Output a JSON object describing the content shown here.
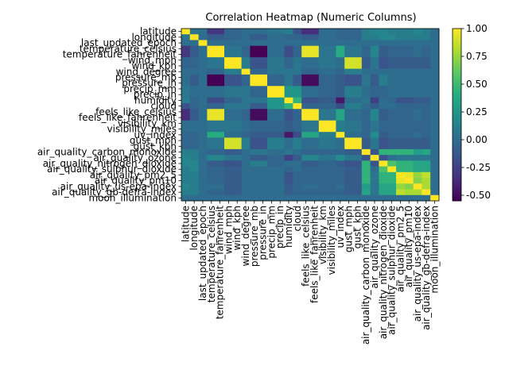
{
  "chart_data": {
    "type": "heatmap",
    "title": "Correlation Heatmap (Numeric Columns)",
    "xlabel": "",
    "ylabel": "",
    "labels": [
      "latitude",
      "longitude",
      "last_updated_epoch",
      "temperature_celsius",
      "temperature_fahrenheit",
      "wind_mph",
      "wind_kph",
      "wind_degree",
      "pressure_mb",
      "pressure_in",
      "precip_mm",
      "precip_in",
      "humidity",
      "cloud",
      "feels_like_celsius",
      "feels_like_fahrenheit",
      "visibility_km",
      "visibility_miles",
      "uv_index",
      "gust_mph",
      "gust_kph",
      "air_quality_carbon_monoxide",
      "air_quality_ozone",
      "air_quality_nitrogen_dioxide",
      "air_quality_sulphur_dioxide",
      "air_quality_pm2_5",
      "air_quality_pm10",
      "air_quality_us-epa-index",
      "air_quality_gb-defra-index",
      "moon_illumination"
    ],
    "matrix": [
      [
        1,
        0.05,
        0.02,
        -0.3,
        -0.3,
        -0.05,
        -0.05,
        0,
        0,
        0,
        0.05,
        0.05,
        0.1,
        -0.15,
        -0.35,
        -0.35,
        0,
        0,
        -0.05,
        -0.05,
        -0.05,
        0.1,
        0.15,
        0.15,
        0.1,
        0.1,
        0.1,
        0.15,
        0.1,
        0
      ],
      [
        0.05,
        1,
        0,
        -0.1,
        -0.1,
        -0.05,
        -0.05,
        0,
        -0.1,
        -0.1,
        0,
        0,
        -0.05,
        -0.05,
        -0.1,
        -0.1,
        0,
        0,
        -0.05,
        -0.05,
        -0.05,
        0.1,
        0.1,
        0.15,
        0.15,
        0.1,
        0.1,
        0.1,
        0.1,
        0
      ],
      [
        0.02,
        0,
        1,
        0,
        0,
        0,
        0,
        0,
        0,
        0,
        0,
        0,
        0,
        0,
        0,
        0,
        0,
        0,
        0,
        0,
        0,
        0,
        0,
        0,
        0,
        0,
        0,
        0,
        0,
        0
      ],
      [
        -0.3,
        -0.1,
        0,
        1,
        1,
        0.05,
        0.05,
        -0.05,
        -0.55,
        -0.55,
        0,
        0,
        -0.2,
        -0.05,
        0.95,
        0.95,
        0.05,
        0.05,
        0.4,
        0.05,
        0.05,
        -0.05,
        0.15,
        -0.1,
        -0.05,
        -0.05,
        -0.05,
        0,
        -0.05,
        0
      ],
      [
        -0.3,
        -0.1,
        0,
        1,
        1,
        0.05,
        0.05,
        -0.05,
        -0.55,
        -0.55,
        0,
        0,
        -0.2,
        -0.05,
        0.95,
        0.95,
        0.05,
        0.05,
        0.4,
        0.05,
        0.05,
        -0.05,
        0.15,
        -0.1,
        -0.05,
        -0.05,
        -0.05,
        0,
        -0.05,
        0
      ],
      [
        -0.05,
        -0.05,
        0,
        0.05,
        0.05,
        1,
        1,
        0.1,
        -0.15,
        -0.15,
        0.05,
        0.05,
        -0.05,
        0.05,
        0,
        0,
        0.05,
        0.05,
        0,
        0.9,
        0.9,
        -0.1,
        0.05,
        -0.15,
        -0.1,
        -0.1,
        -0.1,
        -0.1,
        -0.1,
        0
      ],
      [
        -0.05,
        -0.05,
        0,
        0.05,
        0.05,
        1,
        1,
        0.1,
        -0.15,
        -0.15,
        0.05,
        0.05,
        -0.05,
        0.05,
        0,
        0,
        0.05,
        0.05,
        0,
        0.9,
        0.9,
        -0.1,
        0.05,
        -0.15,
        -0.1,
        -0.1,
        -0.1,
        -0.1,
        -0.1,
        0
      ],
      [
        0,
        0,
        0,
        -0.05,
        -0.05,
        0.1,
        0.1,
        1,
        -0.05,
        -0.05,
        0.05,
        0.05,
        0.05,
        0.05,
        -0.05,
        -0.05,
        0,
        0,
        -0.05,
        0.1,
        0.1,
        0,
        0,
        0,
        0,
        0,
        0,
        0,
        0,
        0
      ],
      [
        0,
        -0.1,
        0,
        -0.55,
        -0.55,
        -0.15,
        -0.15,
        -0.05,
        1,
        1,
        -0.05,
        -0.05,
        0.05,
        -0.1,
        -0.5,
        -0.5,
        -0.05,
        -0.05,
        -0.1,
        -0.15,
        -0.15,
        0.05,
        -0.1,
        0.1,
        0,
        0,
        0,
        0,
        0,
        0
      ],
      [
        0,
        -0.1,
        0,
        -0.55,
        -0.55,
        -0.15,
        -0.15,
        -0.05,
        1,
        1,
        -0.05,
        -0.05,
        0.05,
        -0.1,
        -0.5,
        -0.5,
        -0.05,
        -0.05,
        -0.1,
        -0.15,
        -0.15,
        0.05,
        -0.1,
        0.1,
        0,
        0,
        0,
        0,
        0,
        0
      ],
      [
        0.05,
        0,
        0,
        0,
        0,
        0.05,
        0.05,
        0.05,
        -0.05,
        -0.05,
        1,
        1,
        0.25,
        0.25,
        0,
        0,
        -0.05,
        -0.05,
        -0.1,
        0.1,
        0.1,
        0,
        -0.05,
        -0.05,
        0,
        0,
        0,
        0,
        0,
        0
      ],
      [
        0.05,
        0,
        0,
        0,
        0,
        0.05,
        0.05,
        0.05,
        -0.05,
        -0.05,
        1,
        1,
        0.25,
        0.25,
        0,
        0,
        -0.05,
        -0.05,
        -0.1,
        0.1,
        0.1,
        0,
        -0.05,
        -0.05,
        0,
        0,
        0,
        0,
        0,
        0
      ],
      [
        0.1,
        -0.05,
        0,
        -0.2,
        -0.2,
        -0.05,
        -0.05,
        0.05,
        0.05,
        0.05,
        0.25,
        0.25,
        1,
        0.45,
        -0.15,
        -0.15,
        -0.1,
        -0.1,
        -0.45,
        0,
        0,
        0.05,
        -0.25,
        0,
        -0.05,
        -0.15,
        -0.15,
        -0.1,
        -0.1,
        0
      ],
      [
        -0.15,
        -0.05,
        0,
        -0.05,
        -0.05,
        0.05,
        0.05,
        0.05,
        -0.1,
        -0.1,
        0.25,
        0.25,
        0.45,
        1,
        -0.05,
        -0.05,
        -0.05,
        -0.05,
        -0.2,
        0.1,
        0.1,
        0,
        -0.1,
        0,
        0,
        -0.05,
        -0.05,
        -0.05,
        -0.05,
        0
      ],
      [
        -0.35,
        -0.1,
        0,
        0.95,
        0.95,
        0,
        0,
        -0.05,
        -0.5,
        -0.5,
        0,
        0,
        -0.15,
        -0.05,
        1,
        1,
        0.05,
        0.05,
        0.35,
        0,
        0,
        -0.05,
        0.15,
        -0.1,
        -0.05,
        -0.05,
        -0.05,
        0,
        -0.05,
        0
      ],
      [
        -0.35,
        -0.1,
        0,
        0.95,
        0.95,
        0,
        0,
        -0.05,
        -0.5,
        -0.5,
        0,
        0,
        -0.15,
        -0.05,
        1,
        1,
        0.05,
        0.05,
        0.35,
        0,
        0,
        -0.05,
        0.15,
        -0.1,
        -0.05,
        -0.05,
        -0.05,
        0,
        -0.05,
        0
      ],
      [
        0,
        0,
        0,
        0.05,
        0.05,
        0.05,
        0.05,
        0,
        -0.05,
        -0.05,
        -0.05,
        -0.05,
        -0.1,
        -0.05,
        0.05,
        0.05,
        1,
        1,
        0.1,
        0.05,
        0.05,
        -0.05,
        0.05,
        -0.05,
        -0.05,
        -0.05,
        -0.05,
        -0.05,
        -0.05,
        0
      ],
      [
        0,
        0,
        0,
        0.05,
        0.05,
        0.05,
        0.05,
        0,
        -0.05,
        -0.05,
        -0.05,
        -0.05,
        -0.1,
        -0.05,
        0.05,
        0.05,
        1,
        1,
        0.1,
        0.05,
        0.05,
        -0.05,
        0.05,
        -0.05,
        -0.05,
        -0.05,
        -0.05,
        -0.05,
        -0.05,
        0
      ],
      [
        -0.05,
        -0.05,
        0,
        0.4,
        0.4,
        0,
        0,
        -0.05,
        -0.1,
        -0.1,
        -0.1,
        -0.1,
        -0.45,
        -0.2,
        0.35,
        0.35,
        0.1,
        0.1,
        1,
        0,
        0,
        -0.05,
        0.2,
        -0.1,
        -0.05,
        -0.05,
        -0.05,
        0,
        -0.05,
        0
      ],
      [
        -0.05,
        -0.05,
        0,
        0.05,
        0.05,
        0.9,
        0.9,
        0.1,
        -0.15,
        -0.15,
        0.1,
        0.1,
        0,
        0.1,
        0,
        0,
        0.05,
        0.05,
        0,
        1,
        1,
        -0.1,
        0.05,
        -0.15,
        -0.1,
        -0.1,
        -0.1,
        -0.1,
        -0.1,
        0
      ],
      [
        -0.05,
        -0.05,
        0,
        0.05,
        0.05,
        0.9,
        0.9,
        0.1,
        -0.15,
        -0.15,
        0.1,
        0.1,
        0,
        0.1,
        0,
        0,
        0.05,
        0.05,
        0,
        1,
        1,
        -0.1,
        0.05,
        -0.15,
        -0.1,
        -0.1,
        -0.1,
        -0.1,
        -0.1,
        0
      ],
      [
        0.1,
        0.1,
        0,
        -0.05,
        -0.05,
        -0.1,
        -0.1,
        0,
        0.05,
        0.05,
        0,
        0,
        0.05,
        0,
        -0.05,
        -0.05,
        -0.05,
        -0.05,
        -0.05,
        -0.1,
        -0.1,
        1,
        -0.15,
        0.45,
        0.45,
        0.45,
        0.45,
        0.3,
        0.35,
        0
      ],
      [
        0.15,
        0.1,
        0,
        0.15,
        0.15,
        0.05,
        0.05,
        0,
        -0.1,
        -0.1,
        -0.05,
        -0.05,
        -0.25,
        -0.1,
        0.15,
        0.15,
        0.05,
        0.05,
        0.2,
        0.05,
        0.05,
        -0.15,
        1,
        -0.15,
        0,
        0.05,
        0.05,
        0.05,
        0.05,
        0
      ],
      [
        0.15,
        0.15,
        0,
        -0.1,
        -0.1,
        -0.15,
        -0.15,
        0,
        0.1,
        0.1,
        -0.05,
        -0.05,
        0,
        0,
        -0.1,
        -0.1,
        -0.05,
        -0.05,
        -0.1,
        -0.15,
        -0.15,
        0.45,
        -0.15,
        1,
        0.55,
        0.45,
        0.45,
        0.35,
        0.35,
        0
      ],
      [
        0.1,
        0.15,
        0,
        -0.05,
        -0.05,
        -0.1,
        -0.1,
        0,
        0,
        0,
        0,
        0,
        -0.05,
        0,
        -0.05,
        -0.05,
        -0.05,
        -0.05,
        -0.05,
        -0.1,
        -0.1,
        0.45,
        0,
        0.55,
        1,
        0.45,
        0.45,
        0.35,
        0.35,
        0
      ],
      [
        0.1,
        0.1,
        0,
        -0.05,
        -0.05,
        -0.1,
        -0.1,
        0,
        0,
        0,
        0,
        0,
        -0.15,
        -0.05,
        -0.05,
        -0.05,
        -0.05,
        -0.05,
        -0.05,
        -0.1,
        -0.1,
        0.45,
        0.05,
        0.45,
        0.45,
        1,
        0.95,
        0.75,
        0.85,
        0
      ],
      [
        0.1,
        0.1,
        0,
        -0.05,
        -0.05,
        -0.1,
        -0.1,
        0,
        0,
        0,
        0,
        0,
        -0.15,
        -0.05,
        -0.05,
        -0.05,
        -0.05,
        -0.05,
        -0.05,
        -0.1,
        -0.1,
        0.45,
        0.05,
        0.45,
        0.45,
        0.95,
        1,
        0.7,
        0.8,
        0
      ],
      [
        0.15,
        0.1,
        0,
        0,
        0,
        -0.1,
        -0.1,
        0,
        0,
        0,
        0,
        0,
        -0.1,
        -0.05,
        0,
        0,
        -0.05,
        -0.05,
        0,
        -0.1,
        -0.1,
        0.3,
        0.05,
        0.35,
        0.35,
        0.75,
        0.7,
        1,
        0.8,
        0
      ],
      [
        0.1,
        0.1,
        0,
        -0.05,
        -0.05,
        -0.1,
        -0.1,
        0,
        0,
        0,
        0,
        0,
        -0.1,
        -0.05,
        -0.05,
        -0.05,
        -0.05,
        -0.05,
        -0.05,
        -0.1,
        -0.1,
        0.35,
        0.05,
        0.35,
        0.35,
        0.85,
        0.8,
        0.8,
        1,
        0
      ],
      [
        0,
        0,
        0,
        0,
        0,
        0,
        0,
        0,
        0,
        0,
        0,
        0,
        0,
        0,
        0,
        0,
        0,
        0,
        0,
        0,
        0,
        0,
        0,
        0,
        0,
        0,
        0,
        0,
        0,
        1
      ]
    ],
    "vmin": -0.55,
    "vmax": 1.0,
    "colormap": "viridis",
    "colorbar_ticks": [
      "1.00",
      "0.75",
      "0.50",
      "0.25",
      "0.00",
      "-0.25",
      "-0.50"
    ],
    "colorbar_tick_values": [
      1.0,
      0.75,
      0.5,
      0.25,
      0.0,
      -0.25,
      -0.5
    ]
  }
}
